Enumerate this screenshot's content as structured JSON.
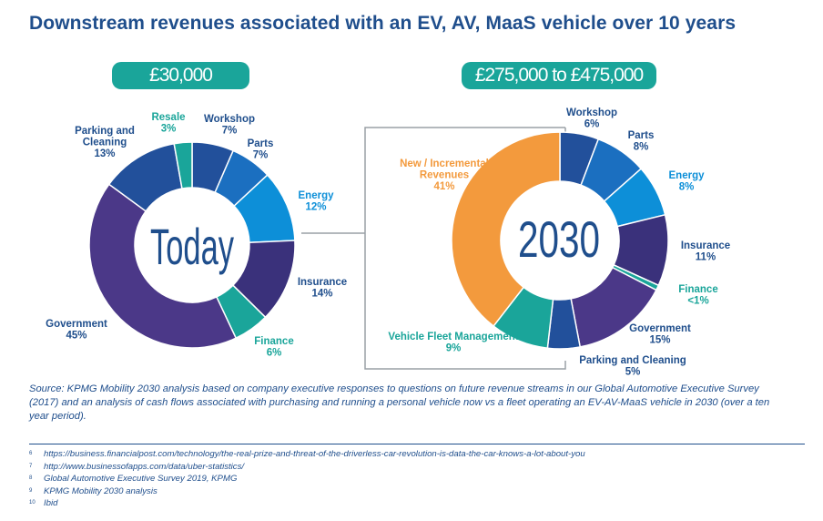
{
  "title": "Downstream revenues associated with an EV, AV, MaaS vehicle over 10 years",
  "chart_data": [
    {
      "type": "pie",
      "title": "£30,000",
      "center_label": "Today",
      "slices": [
        {
          "label": "Workshop",
          "value_label": "7%",
          "value": 7,
          "color": "#22509b"
        },
        {
          "label": "Parts",
          "value_label": "7%",
          "value": 7,
          "color": "#1b6fc0"
        },
        {
          "label": "Energy",
          "value_label": "12%",
          "value": 12,
          "color": "#0d8fd8"
        },
        {
          "label": "Insurance",
          "value_label": "14%",
          "value": 14,
          "color": "#3a317b"
        },
        {
          "label": "Finance",
          "value_label": "6%",
          "value": 6,
          "color": "#1aa59a"
        },
        {
          "label": "Government",
          "value_label": "45%",
          "value": 45,
          "color": "#4b3888"
        },
        {
          "label": "Parking and Cleaning",
          "value_label": "13%",
          "value": 13,
          "color": "#22509b"
        },
        {
          "label": "Resale",
          "value_label": "3%",
          "value": 3,
          "color": "#1aa59a"
        }
      ]
    },
    {
      "type": "pie",
      "title": "£275,000 to £475,000",
      "center_label": "2030",
      "slices": [
        {
          "label": "Workshop",
          "value_label": "6%",
          "value": 6,
          "color": "#22509b"
        },
        {
          "label": "Parts",
          "value_label": "8%",
          "value": 8,
          "color": "#1b6fc0"
        },
        {
          "label": "Energy",
          "value_label": "8%",
          "value": 8,
          "color": "#0d8fd8"
        },
        {
          "label": "Insurance",
          "value_label": "11%",
          "value": 11,
          "color": "#3a317b"
        },
        {
          "label": "Finance",
          "value_label": "<1%",
          "value": 0.8,
          "color": "#1aa59a"
        },
        {
          "label": "Government",
          "value_label": "15%",
          "value": 15,
          "color": "#4b3888"
        },
        {
          "label": "Parking and Cleaning",
          "value_label": "5%",
          "value": 5,
          "color": "#22509b"
        },
        {
          "label": "Vehicle Fleet Management",
          "value_label": "9%",
          "value": 9,
          "color": "#1aa59a"
        },
        {
          "label": "New / Incremental Revenues",
          "value_label": "41%",
          "value": 41,
          "color": "#f39a3d"
        }
      ]
    }
  ],
  "source": "Source: KPMG Mobility 2030 analysis based on company executive responses to questions on future revenue streams in our Global Automotive Executive Survey (2017) and an analysis of cash flows associated with purchasing and running a personal vehicle now vs a fleet operating an EV-AV-MaaS vehicle in 2030 (over a ten year period).",
  "footnotes": [
    {
      "num": "6",
      "text": "https://business.financialpost.com/technology/the-real-prize-and-threat-of-the-driverless-car-revolution-is-data-the-car-knows-a-lot-about-you"
    },
    {
      "num": "7",
      "text": "http://www.businessofapps.com/data/uber-statistics/"
    },
    {
      "num": "8",
      "text": "Global Automotive Executive Survey 2019, KPMG"
    },
    {
      "num": "9",
      "text": "KPMG Mobility 2030 analysis"
    },
    {
      "num": "10",
      "text": "Ibid"
    }
  ]
}
